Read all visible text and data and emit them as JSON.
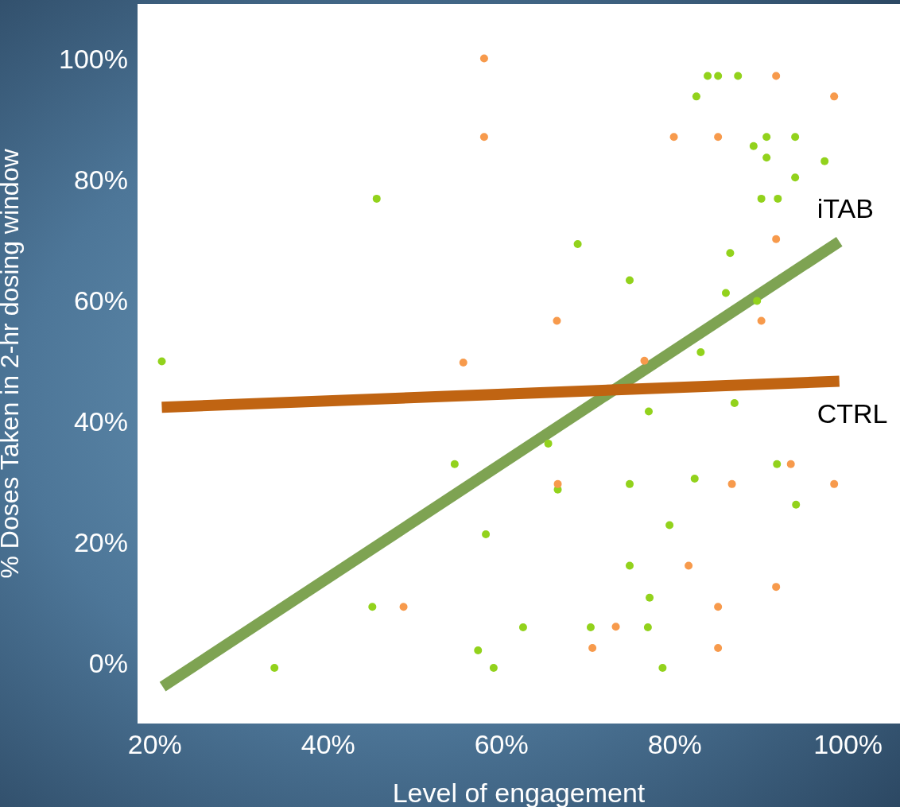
{
  "chart_data": {
    "type": "scatter",
    "xlabel": "Level of engagement",
    "ylabel": "% Doses Taken in 2-hr dosing window",
    "xlim": [
      18,
      106
    ],
    "ylim": [
      -10,
      109
    ],
    "xticks": [
      {
        "value": 20,
        "label": "20%"
      },
      {
        "value": 40,
        "label": "40%"
      },
      {
        "value": 60,
        "label": "60%"
      },
      {
        "value": 80,
        "label": "80%"
      },
      {
        "value": 100,
        "label": "100%"
      }
    ],
    "yticks": [
      {
        "value": 0,
        "label": "0%"
      },
      {
        "value": 20,
        "label": "20%"
      },
      {
        "value": 40,
        "label": "40%"
      },
      {
        "value": 60,
        "label": "60%"
      },
      {
        "value": 80,
        "label": "80%"
      },
      {
        "value": 100,
        "label": "100%"
      }
    ],
    "grid": false,
    "marker": "circle",
    "series": [
      {
        "color": "#92d21c",
        "x": [
          20.8,
          33.8,
          45.1,
          45.6,
          54.6,
          57.3,
          58.2,
          59.1,
          62.5,
          65.4,
          66.5,
          68.8,
          70.3,
          74.8,
          74.8,
          74.8,
          77.0,
          77.1,
          76.9,
          78.6,
          79.4,
          82.3,
          82.5,
          83.0,
          83.8,
          85.0,
          85.9,
          86.4,
          86.9,
          87.3,
          89.1,
          89.5,
          90.0,
          90.6,
          90.6,
          91.8,
          91.9,
          93.9,
          93.9,
          94.0,
          97.3
        ],
        "values": [
          49.9,
          -0.8,
          9.3,
          76.8,
          32.9,
          2.1,
          21.3,
          -0.8,
          5.9,
          36.3,
          28.7,
          69.3,
          5.9,
          63.3,
          29.6,
          16.1,
          41.6,
          10.8,
          5.9,
          -0.8,
          22.8,
          30.5,
          93.7,
          51.4,
          97.1,
          97.1,
          61.2,
          67.8,
          43.0,
          97.1,
          85.5,
          59.9,
          76.8,
          87.0,
          83.6,
          32.9,
          76.8,
          87.0,
          80.3,
          26.2,
          83.0
        ]
      },
      {
        "color": "#f79a4c",
        "x": [
          48.7,
          55.6,
          58.0,
          58.0,
          66.4,
          66.5,
          70.5,
          73.2,
          76.5,
          79.9,
          81.6,
          85.0,
          85.0,
          85.0,
          86.6,
          90.0,
          91.7,
          91.7,
          91.7,
          93.4,
          98.4,
          98.4
        ],
        "values": [
          9.3,
          49.7,
          100,
          87.0,
          56.6,
          29.6,
          2.5,
          6.0,
          50.0,
          87.0,
          16.1,
          87.0,
          9.3,
          2.5,
          29.6,
          56.6,
          97.1,
          70.1,
          12.6,
          32.9,
          93.7,
          29.6
        ]
      },
      {
        "type": "line",
        "name": "iTAB",
        "color": "#7ea352",
        "marker": "none",
        "x": [
          20.9,
          99.0
        ],
        "values": [
          -3.9,
          69.7
        ]
      },
      {
        "type": "line",
        "name": "CTRL",
        "color": "#c06412",
        "marker": "none",
        "x": [
          20.8,
          99.0
        ],
        "values": [
          42.3,
          46.6
        ]
      }
    ]
  }
}
